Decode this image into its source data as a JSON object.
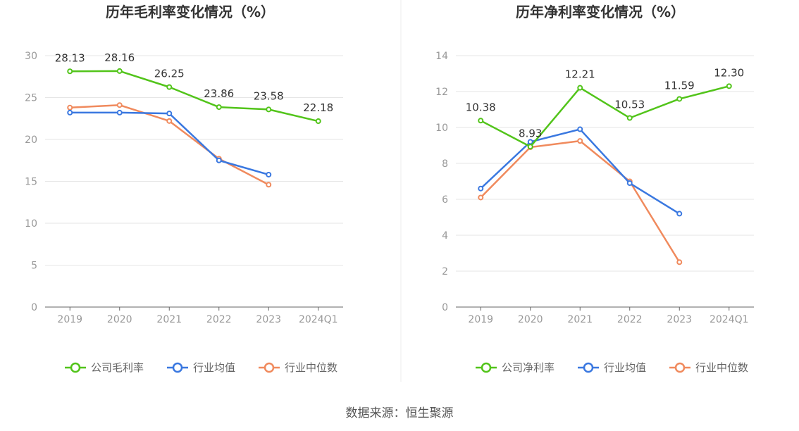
{
  "chart_data": [
    {
      "type": "line",
      "title": "历年毛利率变化情况（%）",
      "categories": [
        "2019",
        "2020",
        "2021",
        "2022",
        "2023",
        "2024Q1"
      ],
      "ylim": [
        0,
        30
      ],
      "yticks": [
        0,
        5,
        10,
        15,
        20,
        25,
        30
      ],
      "grid": true,
      "legend_position": "bottom",
      "series": [
        {
          "name": "公司毛利率",
          "color": "#52c41a",
          "values": [
            28.13,
            28.16,
            26.25,
            23.86,
            23.58,
            22.18
          ],
          "labels": [
            "28.13",
            "28.16",
            "26.25",
            "23.86",
            "23.58",
            "22.18"
          ]
        },
        {
          "name": "行业均值",
          "color": "#3a78e0",
          "values": [
            23.2,
            23.2,
            23.1,
            17.5,
            15.8,
            null
          ]
        },
        {
          "name": "行业中位数",
          "color": "#f08a5d",
          "values": [
            23.8,
            24.1,
            22.2,
            17.7,
            14.6,
            null
          ]
        }
      ]
    },
    {
      "type": "line",
      "title": "历年净利率变化情况（%）",
      "categories": [
        "2019",
        "2020",
        "2021",
        "2022",
        "2023",
        "2024Q1"
      ],
      "ylim": [
        0,
        14
      ],
      "yticks": [
        0,
        2,
        4,
        6,
        8,
        10,
        12,
        14
      ],
      "grid": true,
      "legend_position": "bottom",
      "series": [
        {
          "name": "公司净利率",
          "color": "#52c41a",
          "values": [
            10.38,
            8.93,
            12.21,
            10.53,
            11.59,
            12.3
          ],
          "labels": [
            "10.38",
            "8.93",
            "12.21",
            "10.53",
            "11.59",
            "12.30"
          ]
        },
        {
          "name": "行业均值",
          "color": "#3a78e0",
          "values": [
            6.6,
            9.2,
            9.9,
            6.9,
            5.2,
            null
          ]
        },
        {
          "name": "行业中位数",
          "color": "#f08a5d",
          "values": [
            6.1,
            8.9,
            9.25,
            7.0,
            2.5,
            null
          ]
        }
      ]
    }
  ],
  "source": "数据来源：恒生聚源"
}
